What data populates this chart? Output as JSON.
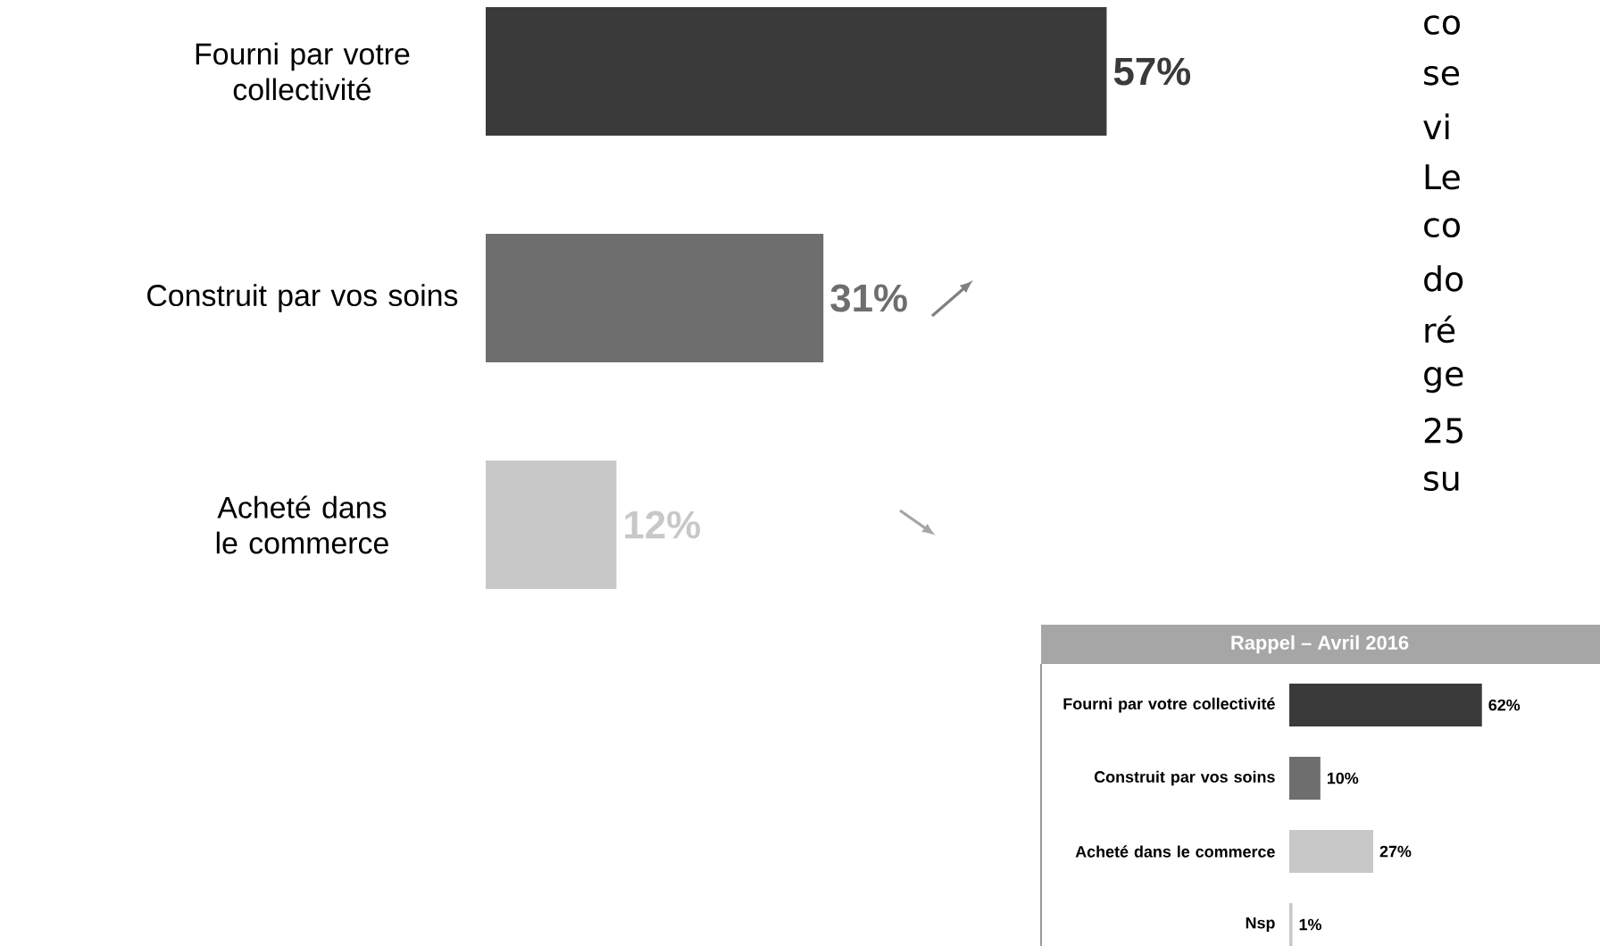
{
  "chart_data": [
    {
      "type": "bar",
      "orientation": "horizontal",
      "tick_labels": "y",
      "categories": [
        "Fourni par votre collectivité",
        "Construit par vos soins",
        "Acheté dans le commerce"
      ],
      "values": [
        57,
        31,
        12
      ],
      "colors": [
        "#3a3a3a",
        "#6e6e6e",
        "#c8c8c8"
      ],
      "value_labels": [
        "57%",
        "31%",
        "12%"
      ],
      "annotations": [
        "co",
        "se",
        "vi",
        "Le",
        "co",
        "do",
        "ré",
        "ge",
        "25",
        "su"
      ]
    },
    {
      "type": "bar",
      "orientation": "horizontal",
      "tick_labels": "y",
      "title": "Rappel – Avril 2016",
      "categories": [
        "Fourni par votre collectivité",
        "Construit par vos soins",
        "Acheté dans le commerce",
        "Nsp"
      ],
      "values": [
        62,
        10,
        27,
        1
      ],
      "colors": [
        "#3a3a3a",
        "#6e6e6e",
        "#c8c8c8",
        "#c8c8c8"
      ],
      "value_labels": [
        "62%",
        "10%",
        "27%",
        "1%"
      ]
    }
  ]
}
